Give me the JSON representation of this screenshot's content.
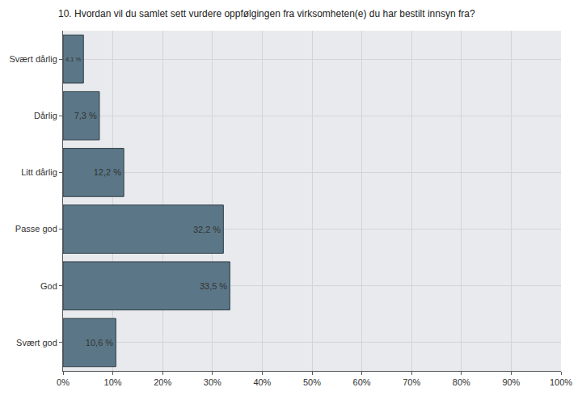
{
  "chart_data": {
    "type": "bar",
    "orientation": "horizontal",
    "title": "10. Hvordan vil du samlet sett vurdere oppfølgingen fra virksomheten(e) du har bestilt innsyn fra?",
    "categories": [
      "Svært dårlig",
      "Dårlig",
      "Litt dårlig",
      "Passe god",
      "God",
      "Svært god"
    ],
    "values": [
      4.1,
      7.3,
      12.2,
      32.2,
      33.5,
      10.6
    ],
    "value_labels": [
      "4,1 %",
      "7,3 %",
      "12,2 %",
      "32,2 %",
      "33,5 %",
      "10,6 %"
    ],
    "data_labels": true,
    "color": "#5b7787",
    "xlim": [
      0,
      100
    ],
    "xticks": [
      {
        "value": 0,
        "label": "0%"
      },
      {
        "value": 10,
        "label": "10%"
      },
      {
        "value": 20,
        "label": "20%"
      },
      {
        "value": 30,
        "label": "30%"
      },
      {
        "value": 40,
        "label": "40%"
      },
      {
        "value": 50,
        "label": "50%"
      },
      {
        "value": 60,
        "label": "60%"
      },
      {
        "value": 70,
        "label": "70%"
      },
      {
        "value": 80,
        "label": "80%"
      },
      {
        "value": 90,
        "label": "90%"
      },
      {
        "value": 100,
        "label": "100%"
      }
    ],
    "grid": true
  }
}
